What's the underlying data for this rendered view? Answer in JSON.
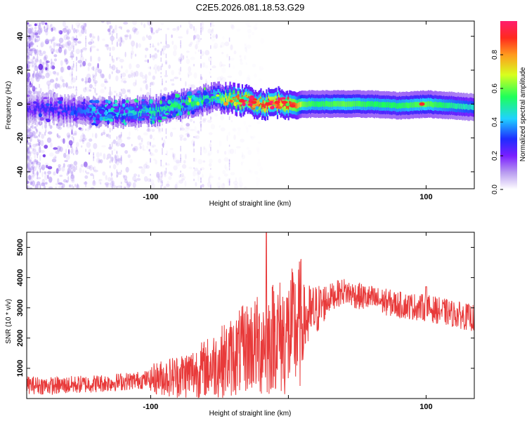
{
  "title": "C2E5.2026.081.18.53.G29",
  "chart_data": [
    {
      "type": "heatmap",
      "xlabel": "Height of straight line (km)",
      "ylabel": "Frequency (Hz)",
      "xlim": [
        -190,
        135
      ],
      "ylim": [
        -50,
        49
      ],
      "xticks": [
        -100,
        0,
        100
      ],
      "xtick_labels": [
        "-100",
        "",
        "100"
      ],
      "yticks": [
        -40,
        -20,
        0,
        20,
        40
      ],
      "ytick_labels": [
        "-40",
        "-20",
        "0",
        "20",
        "40"
      ],
      "colorbar": {
        "label": "Normalized spectral amplitude",
        "range": [
          0,
          1
        ],
        "ticks": [
          0.0,
          0.2,
          0.4,
          0.6,
          0.8
        ],
        "tick_labels": [
          "0.0",
          "0.2",
          "0.4",
          "0.6",
          "0.8"
        ]
      },
      "ridge": {
        "x": [
          -190,
          -160,
          -140,
          -120,
          -100,
          -90,
          -80,
          -70,
          -60,
          -50,
          -40,
          -35,
          -30,
          -25,
          -20,
          -15,
          -10,
          -5,
          0,
          5,
          10,
          20,
          40,
          60,
          80,
          100,
          120,
          135
        ],
        "y": [
          -2,
          -4,
          -5,
          -5,
          -4,
          -3,
          -1,
          1,
          3,
          4,
          3,
          2,
          2,
          1,
          0,
          0,
          1,
          1,
          0,
          -1,
          0,
          0,
          0,
          0,
          -1,
          0,
          -1,
          -2
        ],
        "amplitude": [
          0.25,
          0.3,
          0.4,
          0.45,
          0.5,
          0.5,
          0.55,
          0.55,
          0.5,
          0.6,
          0.8,
          0.9,
          0.9,
          0.85,
          0.9,
          0.95,
          0.95,
          0.9,
          0.9,
          0.85,
          0.6,
          0.55,
          0.6,
          0.55,
          0.55,
          0.6,
          0.5,
          0.45
        ]
      }
    },
    {
      "type": "line",
      "xlabel": "Height of straight line (km)",
      "ylabel": "SNR (10 * v/v)",
      "xlim": [
        -190,
        135
      ],
      "ylim": [
        0,
        5500
      ],
      "xticks": [
        -100,
        0,
        100
      ],
      "xtick_labels": [
        "-100",
        "",
        "100"
      ],
      "yticks": [
        1000,
        2000,
        3000,
        4000,
        5000
      ],
      "ytick_labels": [
        "1000",
        "2000",
        "3000",
        "4000",
        "5000"
      ],
      "series": [
        {
          "name": "SNR",
          "color": "#e83a3a",
          "x": [
            -190,
            -170,
            -150,
            -130,
            -110,
            -100,
            -90,
            -80,
            -70,
            -60,
            -50,
            -40,
            -30,
            -25,
            -20,
            -18,
            -15,
            -10,
            -5,
            0,
            5,
            10,
            20,
            30,
            40,
            50,
            60,
            70,
            80,
            90,
            100,
            110,
            120,
            135
          ],
          "y": [
            450,
            420,
            470,
            520,
            600,
            650,
            700,
            750,
            850,
            1000,
            1200,
            1400,
            1700,
            1800,
            1700,
            2000,
            1800,
            2200,
            2000,
            2100,
            2300,
            2500,
            2900,
            3350,
            3550,
            3400,
            3300,
            3200,
            3100,
            3050,
            3000,
            2900,
            2800,
            2650
          ]
        }
      ]
    }
  ]
}
